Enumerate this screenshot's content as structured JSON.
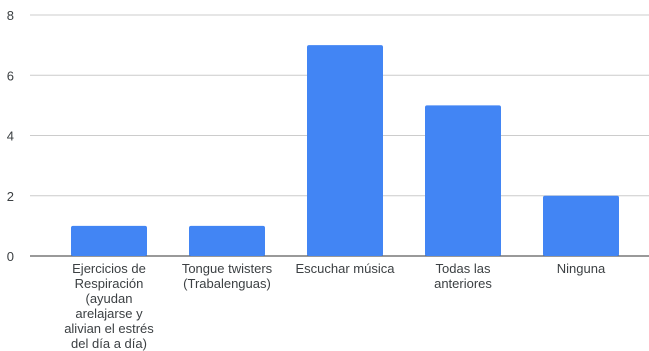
{
  "chart_data": {
    "type": "bar",
    "categories": [
      "Ejercicios de Respiración (ayudan arelajarse y alivian el estrés del día a día)",
      "Tongue twisters (Trabalenguas)",
      "Escuchar música",
      "Todas las anteriores",
      "Ninguna"
    ],
    "category_lines": [
      [
        "Ejercicios de",
        "Respiración",
        "(ayudan",
        "arelajarse y",
        "alivian el estrés",
        "del día a día)"
      ],
      [
        "Tongue twisters",
        "(Trabalenguas)"
      ],
      [
        "Escuchar música"
      ],
      [
        "Todas las",
        "anteriores"
      ],
      [
        "Ninguna"
      ]
    ],
    "values": [
      1,
      1,
      7,
      5,
      2
    ],
    "ylim": [
      0,
      8
    ],
    "yticks": [
      "0",
      "2",
      "4",
      "6",
      "8"
    ],
    "grid": true,
    "bar_color": "#4285f4",
    "title": "",
    "xlabel": "",
    "ylabel": ""
  }
}
